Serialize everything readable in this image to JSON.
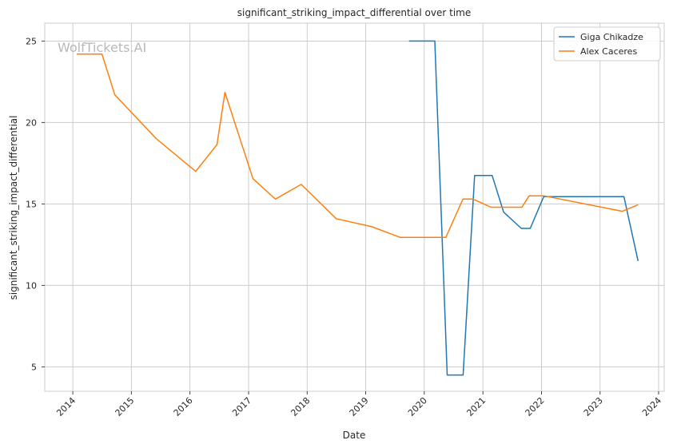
{
  "chart_data": {
    "type": "line",
    "title": "significant_striking_impact_differential over time",
    "xlabel": "Date",
    "ylabel": "significant_striking_impact_differential",
    "watermark": "WolfTickets.AI",
    "xlim": [
      "2013-07-10",
      "2024-02-05"
    ],
    "ylim": [
      3.5,
      26.1
    ],
    "x_ticks": [
      "2014-01-01",
      "2015-01-01",
      "2016-01-01",
      "2017-01-01",
      "2018-01-01",
      "2019-01-01",
      "2020-01-01",
      "2021-01-01",
      "2022-01-01",
      "2023-01-01",
      "2024-01-01"
    ],
    "x_tick_labels": [
      "2014",
      "2015",
      "2016",
      "2017",
      "2018",
      "2019",
      "2020",
      "2021",
      "2022",
      "2023",
      "2024"
    ],
    "y_ticks": [
      5,
      10,
      15,
      20,
      25
    ],
    "y_tick_labels": [
      "5",
      "10",
      "15",
      "20",
      "25"
    ],
    "grid": true,
    "legend_position": "top-right",
    "series": [
      {
        "name": "Giga Chikadze",
        "color": "#1f77b4",
        "x": [
          "2019-09-28",
          "2020-03-07",
          "2020-05-23",
          "2020-08-30",
          "2020-11-10",
          "2021-02-27",
          "2021-05-10",
          "2021-08-28",
          "2021-10-23",
          "2022-01-15",
          "2023-05-30",
          "2023-08-26"
        ],
        "y": [
          25.0,
          25.0,
          4.5,
          4.5,
          16.75,
          16.75,
          14.5,
          13.5,
          13.5,
          15.45,
          15.45,
          11.5
        ]
      },
      {
        "name": "Alex Caceres",
        "color": "#ff7f0e",
        "x": [
          "2014-01-25",
          "2014-07-02",
          "2014-09-20",
          "2015-06-06",
          "2016-02-06",
          "2016-06-18",
          "2016-08-06",
          "2017-01-28",
          "2017-06-17",
          "2017-11-25",
          "2018-07-01",
          "2019-02-10",
          "2019-08-03",
          "2020-05-15",
          "2020-06-13",
          "2020-08-29",
          "2020-10-31",
          "2021-02-20",
          "2021-09-01",
          "2021-10-16",
          "2022-01-15",
          "2023-05-20",
          "2023-08-26"
        ],
        "y": [
          24.2,
          24.2,
          21.7,
          19.0,
          17.0,
          18.65,
          21.85,
          16.55,
          15.3,
          16.2,
          14.1,
          13.6,
          12.95,
          12.95,
          13.6,
          15.3,
          15.3,
          14.8,
          14.8,
          15.5,
          15.5,
          14.55,
          14.95
        ]
      }
    ]
  }
}
